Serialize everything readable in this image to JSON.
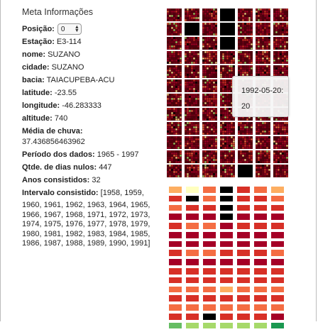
{
  "meta": {
    "title": "Meta Informações",
    "posicao_label": "Posição:",
    "posicao_value": "0",
    "estacao_label": "Estação:",
    "estacao_value": "E3-114",
    "nome_label": "nome:",
    "nome_value": "SUZANO",
    "cidade_label": "cidade:",
    "cidade_value": "SUZANO",
    "bacia_label": "bacia:",
    "bacia_value": "TAIACUPEBA-ACU",
    "latitude_label": "latitude:",
    "latitude_value": "-23.55",
    "longitude_label": "longitude:",
    "longitude_value": "-46.283333",
    "altitude_label": "altitude:",
    "altitude_value": "740",
    "media_label": "Média de chuva:",
    "media_value": "37.436856463962",
    "periodo_label": "Período dos dados:",
    "periodo_value": "1965 - 1997",
    "nulos_label": "Qtde. de dias nulos:",
    "nulos_value": "447",
    "anos_label": "Anos consistidos:",
    "anos_value": "32",
    "intervalo_label": "Intervalo consistido:",
    "intervalo_first": "[1958, 1959,",
    "intervalo_rest": "1960, 1961, 1962, 1963, 1964, 1965, 1966, 1967, 1968, 1971, 1972, 1973, 1974, 1975, 1976, 1977, 1978, 1979, 1980, 1981, 1982, 1983, 1984, 1985, 1986, 1987, 1988, 1989, 1990, 1991]"
  },
  "tooltip": {
    "line1": "1992-05-20:",
    "line2": "20"
  },
  "colors": {
    "black": "#000000",
    "dark_red": "#a50026",
    "red": "#d73027",
    "orange": "#f46d43",
    "light_orange": "#fdae61",
    "pale_yellow": "#fee08b",
    "light_yellow": "#ffffbf",
    "light_green": "#a6d96a",
    "green": "#66bd63",
    "dark_green": "#1a9850"
  },
  "bar_grid": [
    [
      "light_orange",
      "light_yellow",
      "orange",
      "black",
      "red",
      "orange",
      "light_orange"
    ],
    [
      "red",
      "black",
      "orange",
      "black",
      "red",
      "red",
      "orange"
    ],
    [
      "orange",
      "red",
      "red",
      "black",
      "red",
      "red",
      "red"
    ],
    [
      "dark_red",
      "dark_red",
      "dark_red",
      "black",
      "dark_red",
      "dark_red",
      "dark_red"
    ],
    [
      "red",
      "orange",
      "orange",
      "dark_red",
      "red",
      "red",
      "red"
    ],
    [
      "dark_red",
      "dark_red",
      "dark_red",
      "dark_red",
      "dark_red",
      "dark_red",
      "dark_red"
    ],
    [
      "dark_red",
      "dark_red",
      "dark_red",
      "dark_red",
      "dark_red",
      "dark_red",
      "dark_red"
    ],
    [
      "red",
      "orange",
      "orange",
      "red",
      "red",
      "red",
      "orange"
    ],
    [
      "dark_red",
      "dark_red",
      "dark_red",
      "dark_red",
      "dark_red",
      "dark_red",
      "dark_red"
    ],
    [
      "red",
      "red",
      "red",
      "red",
      "red",
      "red",
      "red"
    ],
    [
      "red",
      "red",
      "red",
      "red",
      "red",
      "red",
      "red"
    ],
    [
      "orange",
      "orange",
      "orange",
      "light_orange",
      "orange",
      "orange",
      "orange"
    ],
    [
      "red",
      "red",
      "red",
      "red",
      "red",
      "red",
      "red"
    ],
    [
      "orange",
      "orange",
      "orange",
      "orange",
      "orange",
      "orange",
      "orange"
    ],
    [
      "red",
      "red",
      "black",
      "red",
      "red",
      "red",
      "dark_red"
    ],
    [
      "green",
      "light_green",
      "light_green",
      "light_green",
      "light_green",
      "light_green",
      "dark_green"
    ]
  ],
  "mini_grid": [
    [
      "dot",
      "dot",
      "dot",
      "black",
      "dot",
      "dot",
      "dot"
    ],
    [
      "dot",
      "black",
      "dot",
      "black",
      "dot",
      "dot",
      "dot"
    ],
    [
      "dot",
      "dot",
      "dot",
      "black",
      "dot",
      "dot",
      "dot"
    ],
    [
      "dot",
      "dot",
      "dot",
      "dot",
      "dot",
      "dot",
      "dot"
    ],
    [
      "dot",
      "dot",
      "dot",
      "dot",
      "dot",
      "dot",
      "dot"
    ],
    [
      "dot",
      "dot",
      "dot",
      "dot",
      "dot",
      "dot",
      "dot"
    ],
    [
      "dot",
      "dot",
      "dot",
      "dot",
      "dot",
      "dot",
      "dot"
    ],
    [
      "dot",
      "dot",
      "dot",
      "dot",
      "dot",
      "dot",
      "dot"
    ],
    [
      "dot",
      "dot",
      "dot",
      "dot",
      "dot",
      "dot",
      "dot"
    ],
    [
      "dot",
      "dot",
      "dot",
      "dot",
      "dot",
      "dot",
      "dot"
    ],
    [
      "dot",
      "dot",
      "dot",
      "dot",
      "dot",
      "dot",
      "dot"
    ],
    [
      "dot",
      "dot",
      "dot",
      "dot",
      "black",
      "dot",
      "dot"
    ]
  ]
}
